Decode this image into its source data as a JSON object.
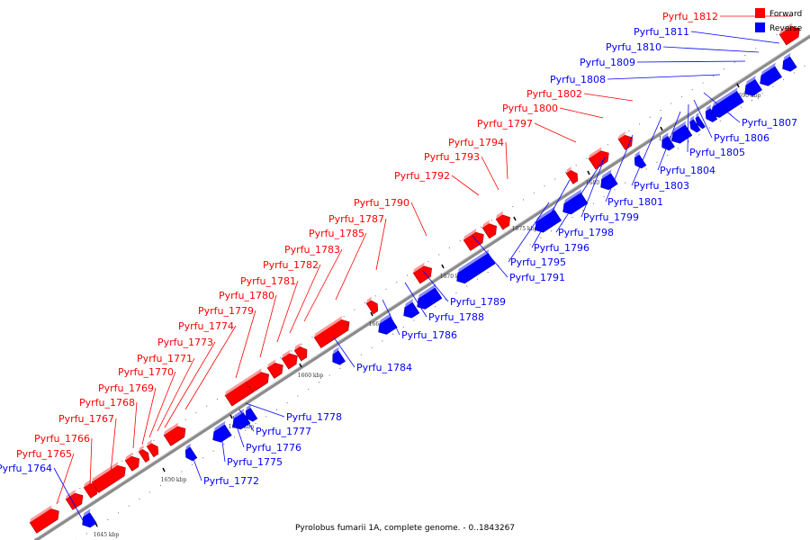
{
  "caption": "Pyrolobus fumarii 1A, complete genome. - 0..1843267",
  "legend": [
    {
      "label": "Forward",
      "color": "#ff0000"
    },
    {
      "label": "Reverse",
      "color": "#0000ff"
    }
  ],
  "colors": {
    "forward": "#ff0000",
    "reverse": "#0000ff",
    "axis": "#999999"
  },
  "kbp_labels": [
    "1645 kbp",
    "1650 kbp",
    "1655 kbp",
    "1660 kbp",
    "1665 kbp",
    "1670 kbp",
    "1675 kbp",
    "1680 kbp",
    "1685 kbp",
    "1690 kbp"
  ],
  "genes": [
    {
      "id": "Pyrfu_1764",
      "strand": "reverse"
    },
    {
      "id": "Pyrfu_1765",
      "strand": "forward"
    },
    {
      "id": "Pyrfu_1766",
      "strand": "forward"
    },
    {
      "id": "Pyrfu_1767",
      "strand": "forward"
    },
    {
      "id": "Pyrfu_1768",
      "strand": "forward"
    },
    {
      "id": "Pyrfu_1769",
      "strand": "forward"
    },
    {
      "id": "Pyrfu_1770",
      "strand": "forward"
    },
    {
      "id": "Pyrfu_1771",
      "strand": "forward"
    },
    {
      "id": "Pyrfu_1772",
      "strand": "reverse"
    },
    {
      "id": "Pyrfu_1773",
      "strand": "forward"
    },
    {
      "id": "Pyrfu_1774",
      "strand": "forward"
    },
    {
      "id": "Pyrfu_1775",
      "strand": "reverse"
    },
    {
      "id": "Pyrfu_1776",
      "strand": "reverse"
    },
    {
      "id": "Pyrfu_1777",
      "strand": "reverse"
    },
    {
      "id": "Pyrfu_1778",
      "strand": "reverse"
    },
    {
      "id": "Pyrfu_1779",
      "strand": "forward"
    },
    {
      "id": "Pyrfu_1780",
      "strand": "forward"
    },
    {
      "id": "Pyrfu_1781",
      "strand": "forward"
    },
    {
      "id": "Pyrfu_1782",
      "strand": "forward"
    },
    {
      "id": "Pyrfu_1783",
      "strand": "forward"
    },
    {
      "id": "Pyrfu_1784",
      "strand": "reverse"
    },
    {
      "id": "Pyrfu_1785",
      "strand": "forward"
    },
    {
      "id": "Pyrfu_1786",
      "strand": "reverse"
    },
    {
      "id": "Pyrfu_1787",
      "strand": "forward"
    },
    {
      "id": "Pyrfu_1788",
      "strand": "reverse"
    },
    {
      "id": "Pyrfu_1789",
      "strand": "reverse"
    },
    {
      "id": "Pyrfu_1790",
      "strand": "forward"
    },
    {
      "id": "Pyrfu_1791",
      "strand": "reverse"
    },
    {
      "id": "Pyrfu_1792",
      "strand": "forward"
    },
    {
      "id": "Pyrfu_1793",
      "strand": "forward"
    },
    {
      "id": "Pyrfu_1794",
      "strand": "forward"
    },
    {
      "id": "Pyrfu_1795",
      "strand": "reverse"
    },
    {
      "id": "Pyrfu_1796",
      "strand": "reverse"
    },
    {
      "id": "Pyrfu_1797",
      "strand": "forward"
    },
    {
      "id": "Pyrfu_1798",
      "strand": "reverse"
    },
    {
      "id": "Pyrfu_1799",
      "strand": "reverse"
    },
    {
      "id": "Pyrfu_1800",
      "strand": "forward"
    },
    {
      "id": "Pyrfu_1801",
      "strand": "reverse"
    },
    {
      "id": "Pyrfu_1802",
      "strand": "forward"
    },
    {
      "id": "Pyrfu_1803",
      "strand": "reverse"
    },
    {
      "id": "Pyrfu_1804",
      "strand": "reverse"
    },
    {
      "id": "Pyrfu_1805",
      "strand": "reverse"
    },
    {
      "id": "Pyrfu_1806",
      "strand": "reverse"
    },
    {
      "id": "Pyrfu_1807",
      "strand": "reverse"
    },
    {
      "id": "Pyrfu_1808",
      "strand": "reverse"
    },
    {
      "id": "Pyrfu_1809",
      "strand": "reverse"
    },
    {
      "id": "Pyrfu_1810",
      "strand": "reverse"
    },
    {
      "id": "Pyrfu_1811",
      "strand": "reverse"
    },
    {
      "id": "Pyrfu_1812",
      "strand": "forward"
    }
  ]
}
